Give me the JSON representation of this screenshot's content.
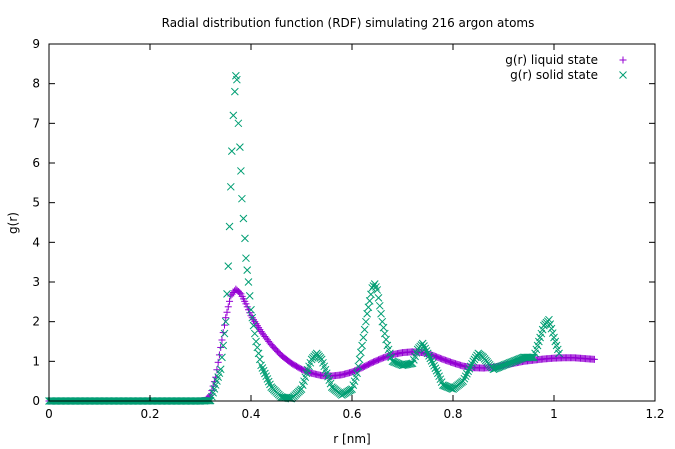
{
  "chart_data": {
    "type": "scatter",
    "title": "Radial distribution function (RDF) simulating 216 argon atoms",
    "xlabel": "r [nm]",
    "ylabel": "g(r)",
    "xlim": [
      0,
      1.2
    ],
    "ylim": [
      0,
      9
    ],
    "xticks": [
      "0",
      "0.2",
      "0.4",
      "0.6",
      "0.8",
      "1",
      "1.2"
    ],
    "yticks": [
      "0",
      "1",
      "2",
      "3",
      "4",
      "5",
      "6",
      "7",
      "8",
      "9"
    ],
    "legend_position": "top-right",
    "grid": false,
    "series": [
      {
        "name": "g(r) liquid state",
        "marker": "plus",
        "color": "#9400d3",
        "points": [
          [
            0.0,
            0.0
          ],
          [
            0.1,
            0.0
          ],
          [
            0.2,
            0.0
          ],
          [
            0.3,
            0.0
          ],
          [
            0.31,
            0.02
          ],
          [
            0.32,
            0.15
          ],
          [
            0.33,
            0.6
          ],
          [
            0.34,
            1.35
          ],
          [
            0.35,
            2.1
          ],
          [
            0.36,
            2.65
          ],
          [
            0.37,
            2.82
          ],
          [
            0.38,
            2.7
          ],
          [
            0.39,
            2.45
          ],
          [
            0.4,
            2.15
          ],
          [
            0.42,
            1.75
          ],
          [
            0.44,
            1.42
          ],
          [
            0.46,
            1.15
          ],
          [
            0.48,
            0.95
          ],
          [
            0.5,
            0.8
          ],
          [
            0.52,
            0.7
          ],
          [
            0.54,
            0.64
          ],
          [
            0.56,
            0.63
          ],
          [
            0.58,
            0.66
          ],
          [
            0.6,
            0.73
          ],
          [
            0.62,
            0.84
          ],
          [
            0.64,
            0.97
          ],
          [
            0.66,
            1.08
          ],
          [
            0.68,
            1.17
          ],
          [
            0.7,
            1.22
          ],
          [
            0.72,
            1.24
          ],
          [
            0.74,
            1.22
          ],
          [
            0.76,
            1.15
          ],
          [
            0.78,
            1.05
          ],
          [
            0.8,
            0.96
          ],
          [
            0.82,
            0.88
          ],
          [
            0.84,
            0.84
          ],
          [
            0.86,
            0.83
          ],
          [
            0.88,
            0.85
          ],
          [
            0.9,
            0.9
          ],
          [
            0.92,
            0.95
          ],
          [
            0.94,
            1.0
          ],
          [
            0.96,
            1.03
          ],
          [
            0.98,
            1.06
          ],
          [
            1.0,
            1.08
          ],
          [
            1.02,
            1.09
          ],
          [
            1.04,
            1.09
          ],
          [
            1.06,
            1.07
          ],
          [
            1.08,
            1.05
          ]
        ]
      },
      {
        "name": "g(r) solid state",
        "marker": "cross",
        "color": "#009e73",
        "points": [
          [
            0.0,
            0.0
          ],
          [
            0.1,
            0.0
          ],
          [
            0.2,
            0.0
          ],
          [
            0.3,
            0.0
          ],
          [
            0.32,
            0.01
          ],
          [
            0.34,
            0.8
          ],
          [
            0.35,
            2.0
          ],
          [
            0.355,
            3.4
          ],
          [
            0.36,
            5.4
          ],
          [
            0.362,
            6.3
          ],
          [
            0.365,
            7.2
          ],
          [
            0.368,
            7.8
          ],
          [
            0.37,
            8.2
          ],
          [
            0.372,
            8.1
          ],
          [
            0.375,
            7.0
          ],
          [
            0.378,
            6.4
          ],
          [
            0.38,
            5.8
          ],
          [
            0.382,
            5.1
          ],
          [
            0.385,
            4.6
          ],
          [
            0.388,
            4.1
          ],
          [
            0.39,
            3.6
          ],
          [
            0.395,
            3.0
          ],
          [
            0.4,
            2.3
          ],
          [
            0.41,
            1.5
          ],
          [
            0.42,
            0.9
          ],
          [
            0.44,
            0.35
          ],
          [
            0.46,
            0.1
          ],
          [
            0.48,
            0.06
          ],
          [
            0.5,
            0.3
          ],
          [
            0.51,
            0.7
          ],
          [
            0.52,
            1.05
          ],
          [
            0.53,
            1.2
          ],
          [
            0.54,
            1.05
          ],
          [
            0.55,
            0.7
          ],
          [
            0.56,
            0.35
          ],
          [
            0.58,
            0.15
          ],
          [
            0.6,
            0.3
          ],
          [
            0.61,
            0.7
          ],
          [
            0.62,
            1.4
          ],
          [
            0.63,
            2.2
          ],
          [
            0.64,
            2.85
          ],
          [
            0.645,
            2.95
          ],
          [
            0.65,
            2.8
          ],
          [
            0.66,
            2.0
          ],
          [
            0.67,
            1.4
          ],
          [
            0.68,
            1.0
          ],
          [
            0.7,
            0.9
          ],
          [
            0.72,
            0.95
          ],
          [
            0.73,
            1.3
          ],
          [
            0.74,
            1.45
          ],
          [
            0.75,
            1.2
          ],
          [
            0.77,
            0.7
          ],
          [
            0.78,
            0.4
          ],
          [
            0.8,
            0.3
          ],
          [
            0.82,
            0.5
          ],
          [
            0.84,
            1.0
          ],
          [
            0.85,
            1.2
          ],
          [
            0.86,
            1.1
          ],
          [
            0.88,
            0.8
          ],
          [
            0.9,
            0.9
          ],
          [
            0.92,
            1.0
          ],
          [
            0.94,
            1.1
          ],
          [
            0.96,
            1.1
          ],
          [
            0.97,
            1.5
          ],
          [
            0.98,
            1.9
          ],
          [
            0.99,
            2.05
          ],
          [
            1.0,
            1.6
          ],
          [
            1.01,
            1.2
          ]
        ]
      }
    ]
  }
}
